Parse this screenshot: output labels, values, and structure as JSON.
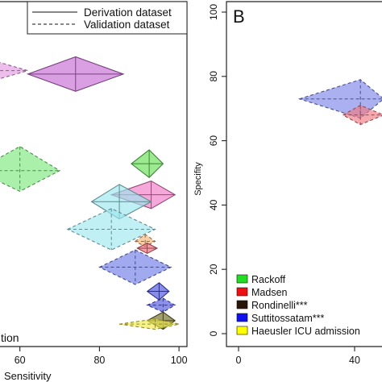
{
  "chart_data": [
    {
      "type": "scatter",
      "panel_label": "",
      "xlabel": "Sensitivity",
      "ylabel": "",
      "corner_text": "tion",
      "xticks": [
        60,
        80,
        100
      ],
      "xlim": [
        55,
        102
      ],
      "ylim": [
        0,
        100
      ],
      "grid": false,
      "legend": {
        "position": "top-right",
        "entries": [
          {
            "label": "Derivation dataset",
            "style": "solid"
          },
          {
            "label": "Validation dataset",
            "style": "dashed"
          }
        ]
      },
      "series": [
        {
          "color": "#E39BE0",
          "dataset": "Validation dataset",
          "x": 50,
          "y": 80,
          "x_ci": [
            38,
            62
          ],
          "y_ci": [
            76,
            84
          ]
        },
        {
          "color": "#C66BD3",
          "dataset": "Derivation dataset",
          "x": 74,
          "y": 79,
          "x_ci": [
            62,
            86
          ],
          "y_ci": [
            74,
            84
          ]
        },
        {
          "color": "#7CE87C",
          "dataset": "Validation dataset",
          "x": 60,
          "y": 51,
          "x_ci": [
            49,
            70
          ],
          "y_ci": [
            45,
            58
          ]
        },
        {
          "color": "#66DD55",
          "dataset": "Derivation dataset",
          "x": 92.5,
          "y": 53,
          "x_ci": [
            88,
            96
          ],
          "y_ci": [
            49,
            57
          ]
        },
        {
          "color": "#F27AC8",
          "dataset": "Derivation dataset",
          "x": 93,
          "y": 44,
          "x_ci": [
            83,
            99
          ],
          "y_ci": [
            40,
            48
          ]
        },
        {
          "color": "#9BE7EE",
          "dataset": "Derivation dataset",
          "x": 85,
          "y": 42,
          "x_ci": [
            78,
            93
          ],
          "y_ci": [
            37,
            47
          ]
        },
        {
          "color": "#9EE6EE",
          "dataset": "Validation dataset",
          "x": 83,
          "y": 34,
          "x_ci": [
            72,
            94
          ],
          "y_ci": [
            28,
            40
          ]
        },
        {
          "color": "#F2B377",
          "dataset": "Validation dataset",
          "x": 91.5,
          "y": 30.5,
          "x_ci": [
            89,
            94
          ],
          "y_ci": [
            29,
            32.5
          ]
        },
        {
          "color": "#F06A7A",
          "dataset": "Derivation dataset",
          "x": 92,
          "y": 28.5,
          "x_ci": [
            89.5,
            94.5
          ],
          "y_ci": [
            27,
            30
          ]
        },
        {
          "color": "#6F7CE6",
          "dataset": "Validation dataset",
          "x": 89,
          "y": 23,
          "x_ci": [
            80,
            98
          ],
          "y_ci": [
            18,
            28
          ]
        },
        {
          "color": "#4850DD",
          "dataset": "Derivation dataset",
          "x": 95,
          "y": 16,
          "x_ci": [
            92,
            97.5
          ],
          "y_ci": [
            13.5,
            18.5
          ]
        },
        {
          "color": "#4F55DC",
          "dataset": "Validation dataset",
          "x": 96,
          "y": 12,
          "x_ci": [
            92,
            99
          ],
          "y_ci": [
            10,
            14
          ]
        },
        {
          "color": "#6E6A22",
          "dataset": "Derivation dataset",
          "x": 96,
          "y": 7.5,
          "x_ci": [
            92,
            99
          ],
          "y_ci": [
            5,
            10
          ]
        },
        {
          "color": "#F1EB4A",
          "dataset": "Validation dataset",
          "x": 94,
          "y": 6.5,
          "x_ci": [
            85,
            100
          ],
          "y_ci": [
            5,
            8
          ]
        }
      ]
    },
    {
      "type": "scatter",
      "panel_label": "B",
      "xlabel": "",
      "ylabel": "Specifity",
      "xticks": [
        0,
        40
      ],
      "yticks": [
        0,
        20,
        40,
        60,
        80,
        100
      ],
      "xlim": [
        -3,
        44
      ],
      "ylim": [
        -3,
        103
      ],
      "grid": false,
      "legend": {
        "position": "bottom-left",
        "entries": [
          {
            "label": "Rackoff",
            "color": "#22DD22"
          },
          {
            "label": "Madsen",
            "color": "#EE1111"
          },
          {
            "label": "Rondinelli***",
            "color": "#2A1508"
          },
          {
            "label": "Suttitossatam***",
            "color": "#1111EE"
          },
          {
            "label": "Haeusler ICU admission",
            "color": "#FFFF00"
          }
        ]
      },
      "series": [
        {
          "color": "#7C86E8",
          "dataset": "Validation dataset",
          "x": 42,
          "y": 73,
          "x_ci": [
            21,
            50
          ],
          "y_ci": [
            67,
            79
          ]
        },
        {
          "color": "#F07A82",
          "dataset": "Validation dataset",
          "x": 42,
          "y": 68,
          "x_ci": [
            36,
            50
          ],
          "y_ci": [
            65,
            71
          ]
        }
      ]
    }
  ]
}
